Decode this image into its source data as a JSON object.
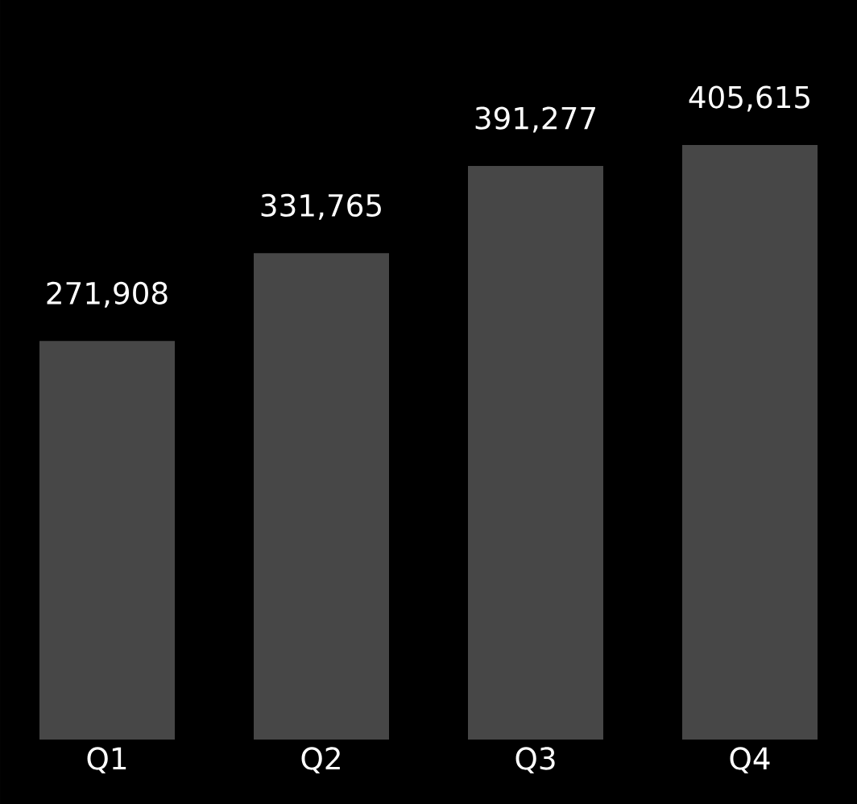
{
  "chart_data": {
    "type": "bar",
    "categories": [
      "Q1",
      "Q2",
      "Q3",
      "Q4"
    ],
    "values": [
      271908,
      331765,
      391277,
      405615
    ],
    "color": "#474747",
    "data_labels": true,
    "value_labels": [
      "271,908",
      "331,765",
      "391,277",
      "405,615"
    ]
  }
}
